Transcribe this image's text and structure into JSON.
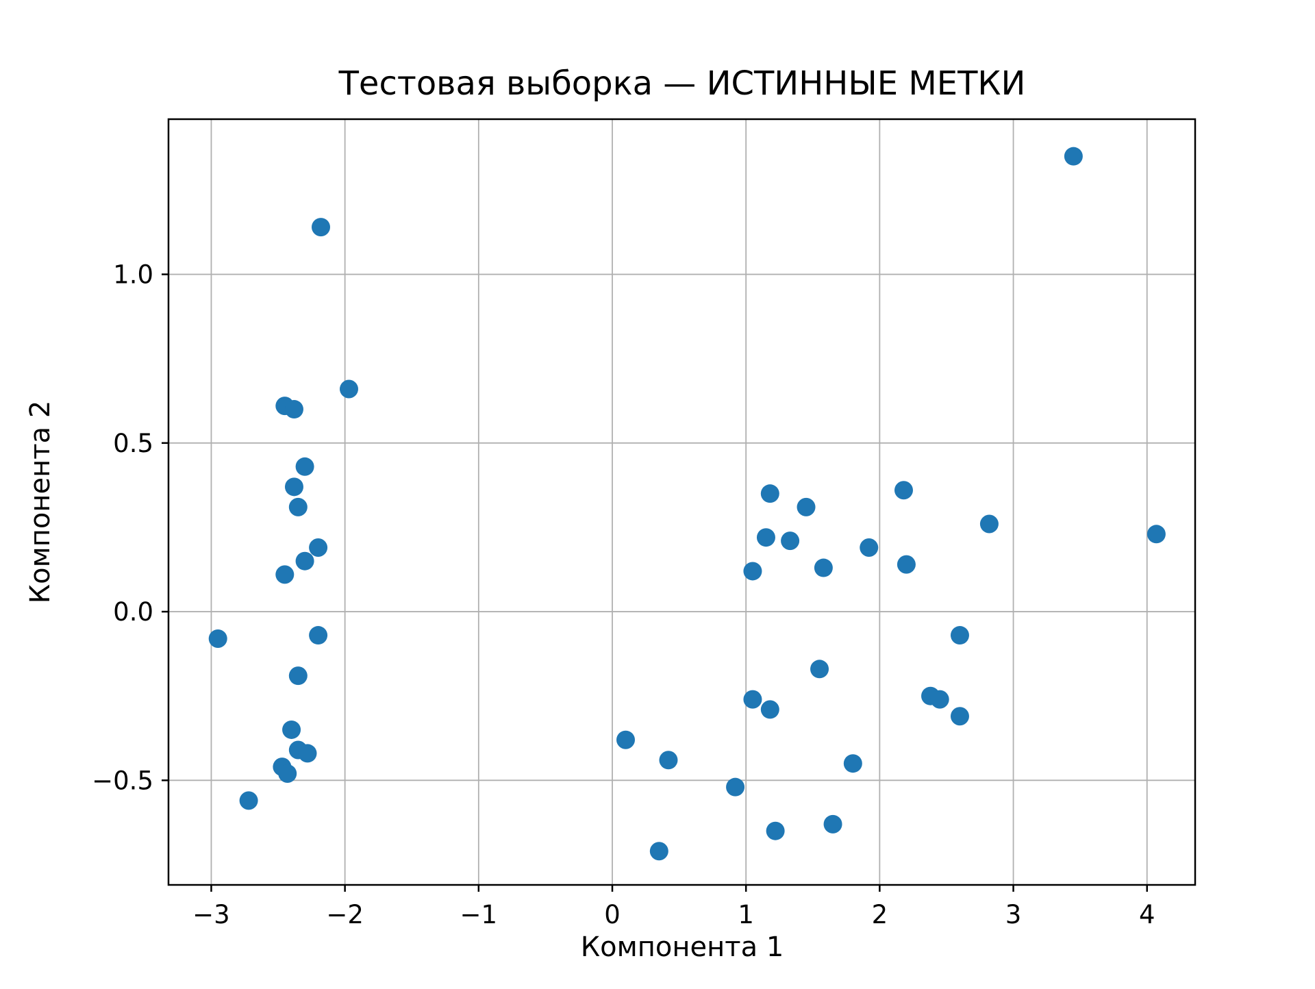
{
  "chart_data": {
    "type": "scatter",
    "title": "Тестовая выборка — ИСТИННЫЕ МЕТКИ",
    "xlabel": "Компонента 1",
    "ylabel": "Компонента 2",
    "xlim": [
      -3.32,
      4.36
    ],
    "ylim": [
      -0.81,
      1.46
    ],
    "xtick_values": [
      -3,
      -2,
      -1,
      0,
      1,
      2,
      3,
      4
    ],
    "xtick_labels": [
      "−3",
      "−2",
      "−1",
      "0",
      "1",
      "2",
      "3",
      "4"
    ],
    "ytick_values": [
      -0.5,
      0.0,
      0.5,
      1.0
    ],
    "ytick_labels": [
      "−0.5",
      "0.0",
      "0.5",
      "1.0"
    ],
    "grid": true,
    "grid_color": "#b0b0b0",
    "marker_color": "#1f77b4",
    "points": [
      [
        -2.95,
        -0.08
      ],
      [
        -2.72,
        -0.56
      ],
      [
        -2.45,
        0.61
      ],
      [
        -2.38,
        0.6
      ],
      [
        -2.3,
        0.43
      ],
      [
        -2.38,
        0.37
      ],
      [
        -2.35,
        0.31
      ],
      [
        -2.45,
        0.11
      ],
      [
        -2.3,
        0.15
      ],
      [
        -2.2,
        0.19
      ],
      [
        -2.18,
        1.14
      ],
      [
        -1.97,
        0.66
      ],
      [
        -2.2,
        -0.07
      ],
      [
        -2.35,
        -0.19
      ],
      [
        -2.4,
        -0.35
      ],
      [
        -2.35,
        -0.41
      ],
      [
        -2.28,
        -0.42
      ],
      [
        -2.47,
        -0.46
      ],
      [
        -2.43,
        -0.48
      ],
      [
        0.1,
        -0.38
      ],
      [
        0.42,
        -0.44
      ],
      [
        0.35,
        -0.71
      ],
      [
        0.92,
        -0.52
      ],
      [
        1.22,
        -0.65
      ],
      [
        1.65,
        -0.63
      ],
      [
        1.8,
        -0.45
      ],
      [
        1.05,
        -0.26
      ],
      [
        1.18,
        -0.29
      ],
      [
        1.55,
        -0.17
      ],
      [
        1.05,
        0.12
      ],
      [
        1.15,
        0.22
      ],
      [
        1.33,
        0.21
      ],
      [
        1.18,
        0.35
      ],
      [
        1.45,
        0.31
      ],
      [
        1.58,
        0.13
      ],
      [
        1.92,
        0.19
      ],
      [
        2.18,
        0.36
      ],
      [
        2.2,
        0.14
      ],
      [
        2.38,
        -0.25
      ],
      [
        2.45,
        -0.26
      ],
      [
        2.6,
        -0.31
      ],
      [
        2.6,
        -0.07
      ],
      [
        2.82,
        0.26
      ],
      [
        3.45,
        1.35
      ],
      [
        4.07,
        0.23
      ]
    ]
  }
}
